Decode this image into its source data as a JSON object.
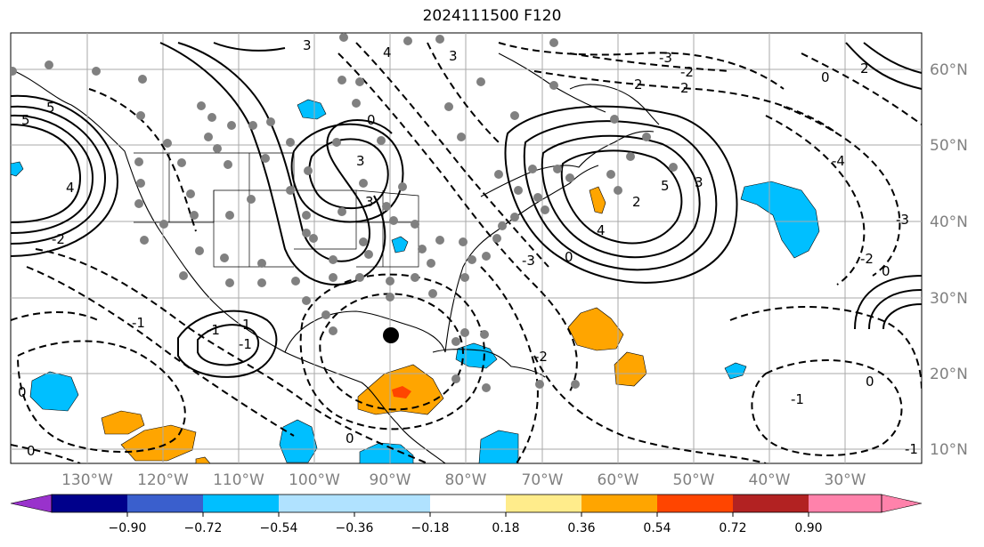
{
  "title": "2024111500 F120",
  "map": {
    "lon_labels": [
      "130°W",
      "120°W",
      "110°W",
      "100°W",
      "90°W",
      "80°W",
      "70°W",
      "60°W",
      "50°W",
      "40°W",
      "30°W"
    ],
    "lat_labels": [
      "60°N",
      "50°N",
      "40°N",
      "30°N",
      "20°N",
      "10°N"
    ],
    "contour_labels": [
      "5",
      "3",
      "4",
      "3",
      "2",
      "2",
      "0",
      "-2",
      "-3",
      "-4",
      "3",
      "5",
      "2",
      "4",
      "5",
      "3",
      "-1",
      "3",
      "-3",
      "-2",
      "0",
      "-1",
      "0",
      "-2",
      "1",
      "-1",
      "0",
      "-1",
      "0",
      "0",
      "-1",
      "0",
      "4",
      "-3",
      "2",
      "0",
      "-2"
    ]
  },
  "colorbar": {
    "tick_labels": [
      "−0.90",
      "−0.72",
      "−0.54",
      "−0.36",
      "−0.18",
      "0.18",
      "0.36",
      "0.54",
      "0.72",
      "0.90"
    ],
    "colors": [
      "#9932cc",
      "#00008b",
      "#3a5fcd",
      "#00bfff",
      "#b0e2ff",
      "#ffffff",
      "#ffec8b",
      "#ffa500",
      "#ff4500",
      "#b22222",
      "#ff82ab"
    ]
  }
}
